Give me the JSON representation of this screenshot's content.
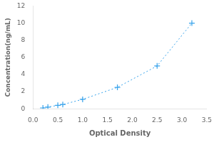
{
  "chart_data": {
    "type": "line",
    "x": [
      0.2,
      0.3,
      0.5,
      0.6,
      1.0,
      1.7,
      2.5,
      3.2
    ],
    "values": [
      0.1,
      0.2,
      0.4,
      0.5,
      1.1,
      2.5,
      5.0,
      10.0
    ],
    "xlabel": "Optical Density",
    "ylabel": "Concentration(ng/mL)",
    "xlim": [
      0,
      3.5
    ],
    "ylim": [
      0,
      12
    ],
    "xticks": [
      {
        "value": 0,
        "label": "0.0"
      },
      0.5,
      {
        "value": 1,
        "label": "1.0"
      },
      1.5,
      {
        "value": 2,
        "label": "2.0"
      },
      2.5,
      {
        "value": 3,
        "label": "3.0"
      },
      3.5
    ],
    "yticks": [
      0,
      2,
      4,
      6,
      8,
      10,
      12
    ],
    "grid": false,
    "marker": "+",
    "line_style": "dotted"
  }
}
